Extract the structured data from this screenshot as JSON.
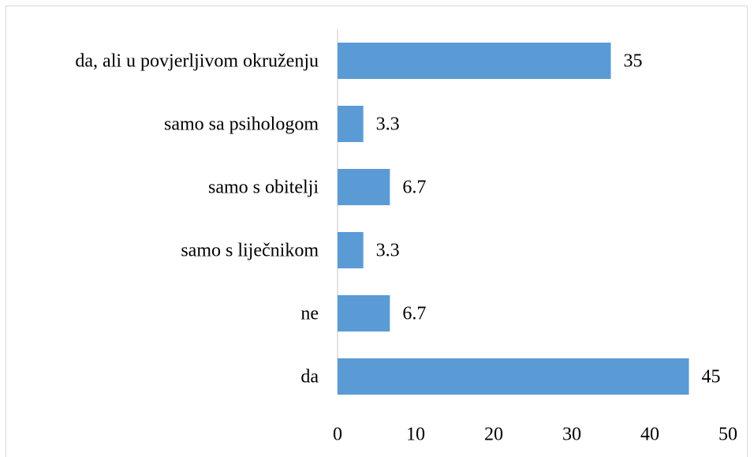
{
  "chart_data": {
    "type": "bar",
    "orientation": "horizontal",
    "categories": [
      "da, ali u povjerljivom okruženju",
      "samo sa psihologom",
      "samo s obitelji",
      "samo s liječnikom",
      "ne",
      "da"
    ],
    "values": [
      35,
      3.3,
      6.7,
      3.3,
      6.7,
      45
    ],
    "color": "#5b9bd5",
    "xlim": [
      0,
      50
    ],
    "xticks": [
      0,
      10,
      20,
      30,
      40,
      50
    ],
    "grid": false
  }
}
